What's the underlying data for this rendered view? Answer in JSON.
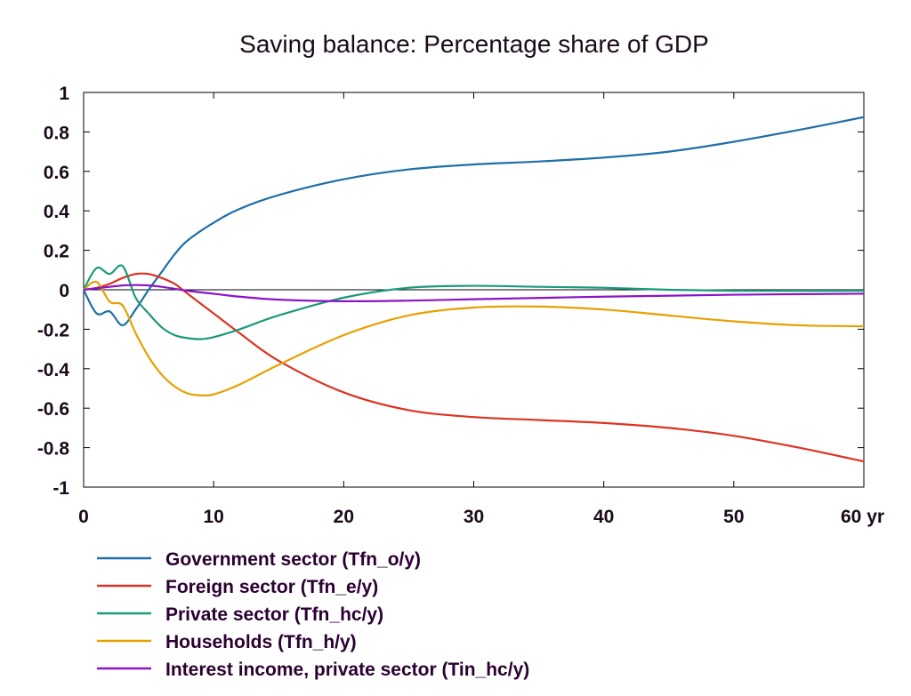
{
  "chart_data": {
    "type": "line",
    "title": "Saving balance: Percentage share of GDP",
    "xlabel": "",
    "ylabel": "",
    "xlim": [
      0,
      60
    ],
    "ylim": [
      -1,
      1
    ],
    "x_ticks": [
      "0",
      "10",
      "20",
      "30",
      "40",
      "50",
      "60 yr"
    ],
    "x_tick_values": [
      0,
      10,
      20,
      30,
      40,
      50,
      60
    ],
    "y_ticks": [
      "1",
      "0.8",
      "0.6",
      "0.4",
      "0.2",
      "0",
      "-0.2",
      "-0.4",
      "-0.6",
      "-0.8",
      "-1"
    ],
    "y_tick_values": [
      1,
      0.8,
      0.6,
      0.4,
      0.2,
      0,
      -0.2,
      -0.4,
      -0.6,
      -0.8,
      -1
    ],
    "grid": false,
    "zero_line": true,
    "legend_position": "bottom",
    "series": [
      {
        "name": "Government sector (Tfn_o/y)",
        "color": "#1f6fa8",
        "x": [
          0,
          1,
          2,
          3,
          4,
          5,
          6,
          7,
          8,
          10,
          12,
          15,
          20,
          25,
          30,
          35,
          40,
          45,
          50,
          55,
          60
        ],
        "values": [
          0,
          -0.12,
          -0.11,
          -0.18,
          -0.1,
          0.0,
          0.09,
          0.18,
          0.25,
          0.34,
          0.41,
          0.48,
          0.56,
          0.61,
          0.635,
          0.65,
          0.67,
          0.7,
          0.75,
          0.81,
          0.875
        ]
      },
      {
        "name": "Foreign sector (Tfn_e/y)",
        "color": "#dd3322",
        "x": [
          0,
          1,
          2,
          3,
          4,
          5,
          6,
          7,
          8,
          10,
          12,
          15,
          20,
          25,
          30,
          35,
          40,
          45,
          50,
          55,
          60
        ],
        "values": [
          0,
          0.01,
          0.03,
          0.06,
          0.08,
          0.08,
          0.06,
          0.03,
          -0.02,
          -0.12,
          -0.22,
          -0.36,
          -0.52,
          -0.61,
          -0.645,
          -0.66,
          -0.675,
          -0.7,
          -0.74,
          -0.8,
          -0.87
        ]
      },
      {
        "name": "Private sector (Tfn_hc/y)",
        "color": "#1a9a7a",
        "x": [
          0,
          1,
          2,
          3,
          4,
          5,
          6,
          7,
          8,
          9,
          10,
          12,
          15,
          20,
          25,
          30,
          35,
          40,
          45,
          50,
          55,
          60
        ],
        "values": [
          0,
          0.11,
          0.08,
          0.12,
          -0.04,
          -0.12,
          -0.19,
          -0.23,
          -0.245,
          -0.25,
          -0.24,
          -0.2,
          -0.13,
          -0.04,
          0.01,
          0.02,
          0.015,
          0.01,
          0.0,
          -0.005,
          -0.005,
          -0.005
        ]
      },
      {
        "name": "Households (Tfn_h/y)",
        "color": "#e8a000",
        "x": [
          0,
          1,
          2,
          3,
          4,
          5,
          6,
          7,
          8,
          9,
          10,
          12,
          15,
          20,
          25,
          30,
          35,
          40,
          45,
          50,
          55,
          60
        ],
        "values": [
          0,
          0.04,
          -0.06,
          -0.08,
          -0.22,
          -0.34,
          -0.43,
          -0.49,
          -0.525,
          -0.535,
          -0.53,
          -0.48,
          -0.38,
          -0.23,
          -0.13,
          -0.09,
          -0.085,
          -0.1,
          -0.13,
          -0.16,
          -0.18,
          -0.185
        ]
      },
      {
        "name": "Interest income, private sector (Tin_hc/y)",
        "color": "#8a14c8",
        "x": [
          0,
          2,
          3,
          4,
          5,
          6,
          8,
          10,
          12,
          15,
          20,
          25,
          30,
          40,
          50,
          60
        ],
        "values": [
          0,
          0.015,
          0.022,
          0.024,
          0.022,
          0.015,
          -0.005,
          -0.02,
          -0.035,
          -0.05,
          -0.058,
          -0.055,
          -0.048,
          -0.035,
          -0.025,
          -0.02
        ]
      }
    ]
  }
}
